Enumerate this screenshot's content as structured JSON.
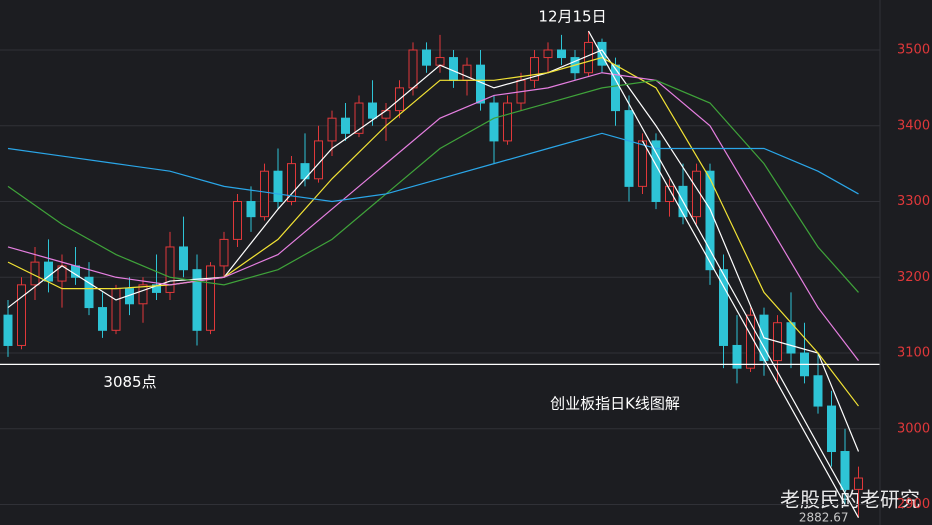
{
  "chart_data": {
    "type": "candlestick",
    "title": "创业板指日K线图解",
    "watermark": "老股民的老研究",
    "ylim": [
      2873,
      3566
    ],
    "yticks": [
      2900,
      3000,
      3100,
      3200,
      3300,
      3400,
      3500
    ],
    "grid": true,
    "up_color": "#e0383a",
    "down_color": "#2ec4d6",
    "tick_color": "#e0383a",
    "candles": [
      [
        3150,
        3170,
        3095,
        3110
      ],
      [
        3110,
        3200,
        3105,
        3190
      ],
      [
        3190,
        3240,
        3170,
        3220
      ],
      [
        3220,
        3250,
        3180,
        3195
      ],
      [
        3195,
        3230,
        3160,
        3215
      ],
      [
        3215,
        3240,
        3190,
        3200
      ],
      [
        3200,
        3220,
        3150,
        3160
      ],
      [
        3160,
        3180,
        3120,
        3130
      ],
      [
        3130,
        3190,
        3125,
        3185
      ],
      [
        3185,
        3200,
        3150,
        3165
      ],
      [
        3165,
        3200,
        3140,
        3190
      ],
      [
        3190,
        3230,
        3170,
        3180
      ],
      [
        3180,
        3260,
        3170,
        3240
      ],
      [
        3240,
        3280,
        3200,
        3210
      ],
      [
        3210,
        3230,
        3110,
        3130
      ],
      [
        3130,
        3220,
        3125,
        3215
      ],
      [
        3215,
        3260,
        3200,
        3250
      ],
      [
        3250,
        3310,
        3240,
        3300
      ],
      [
        3300,
        3320,
        3260,
        3280
      ],
      [
        3280,
        3350,
        3275,
        3340
      ],
      [
        3340,
        3370,
        3290,
        3300
      ],
      [
        3300,
        3360,
        3295,
        3350
      ],
      [
        3350,
        3390,
        3320,
        3330
      ],
      [
        3330,
        3400,
        3325,
        3380
      ],
      [
        3380,
        3420,
        3360,
        3410
      ],
      [
        3410,
        3430,
        3380,
        3390
      ],
      [
        3390,
        3440,
        3385,
        3430
      ],
      [
        3430,
        3460,
        3400,
        3410
      ],
      [
        3410,
        3430,
        3380,
        3420
      ],
      [
        3420,
        3460,
        3410,
        3450
      ],
      [
        3450,
        3510,
        3440,
        3500
      ],
      [
        3500,
        3510,
        3470,
        3480
      ],
      [
        3480,
        3520,
        3470,
        3490
      ],
      [
        3490,
        3500,
        3450,
        3460
      ],
      [
        3460,
        3490,
        3440,
        3480
      ],
      [
        3480,
        3500,
        3420,
        3430
      ],
      [
        3430,
        3440,
        3350,
        3380
      ],
      [
        3380,
        3440,
        3375,
        3430
      ],
      [
        3430,
        3470,
        3420,
        3460
      ],
      [
        3460,
        3500,
        3450,
        3490
      ],
      [
        3490,
        3510,
        3470,
        3500
      ],
      [
        3500,
        3520,
        3480,
        3490
      ],
      [
        3490,
        3500,
        3460,
        3470
      ],
      [
        3470,
        3525,
        3465,
        3510
      ],
      [
        3510,
        3515,
        3470,
        3480
      ],
      [
        3480,
        3490,
        3400,
        3420
      ],
      [
        3420,
        3440,
        3300,
        3320
      ],
      [
        3320,
        3390,
        3310,
        3380
      ],
      [
        3380,
        3390,
        3290,
        3300
      ],
      [
        3300,
        3330,
        3280,
        3320
      ],
      [
        3320,
        3350,
        3270,
        3280
      ],
      [
        3280,
        3350,
        3270,
        3340
      ],
      [
        3340,
        3350,
        3190,
        3210
      ],
      [
        3210,
        3230,
        3080,
        3110
      ],
      [
        3110,
        3150,
        3060,
        3080
      ],
      [
        3080,
        3160,
        3075,
        3150
      ],
      [
        3150,
        3160,
        3070,
        3090
      ],
      [
        3090,
        3150,
        3060,
        3140
      ],
      [
        3140,
        3180,
        3080,
        3100
      ],
      [
        3100,
        3140,
        3060,
        3070
      ],
      [
        3070,
        3100,
        3020,
        3030
      ],
      [
        3030,
        3050,
        2950,
        2970
      ],
      [
        2970,
        3000,
        2900,
        2920
      ],
      [
        2920,
        2950,
        2882.67,
        2935
      ]
    ],
    "ma": [
      {
        "color": "#ffffff",
        "x": [
          0,
          4,
          8,
          12,
          16,
          20,
          24,
          28,
          32,
          36,
          40,
          44,
          48,
          52,
          56,
          60,
          63
        ],
        "values": [
          3160,
          3215,
          3170,
          3195,
          3200,
          3290,
          3370,
          3420,
          3480,
          3450,
          3470,
          3500,
          3400,
          3290,
          3120,
          3100,
          2970
        ]
      },
      {
        "color": "#f2e335",
        "x": [
          0,
          4,
          8,
          12,
          16,
          20,
          24,
          28,
          32,
          36,
          40,
          44,
          48,
          52,
          56,
          60,
          63
        ],
        "values": [
          3220,
          3185,
          3185,
          3190,
          3200,
          3250,
          3330,
          3400,
          3460,
          3460,
          3470,
          3490,
          3450,
          3330,
          3180,
          3100,
          3030
        ]
      },
      {
        "color": "#e57fe0",
        "x": [
          0,
          4,
          8,
          12,
          16,
          20,
          24,
          28,
          32,
          36,
          40,
          44,
          48,
          52,
          56,
          60,
          63
        ],
        "values": [
          3240,
          3220,
          3200,
          3190,
          3200,
          3230,
          3290,
          3350,
          3410,
          3440,
          3450,
          3470,
          3460,
          3400,
          3280,
          3160,
          3090
        ]
      },
      {
        "color": "#3fa33a",
        "x": [
          0,
          4,
          8,
          12,
          16,
          20,
          24,
          28,
          32,
          36,
          40,
          44,
          48,
          52,
          56,
          60,
          63
        ],
        "values": [
          3320,
          3270,
          3230,
          3200,
          3190,
          3210,
          3250,
          3310,
          3370,
          3410,
          3430,
          3450,
          3460,
          3430,
          3350,
          3240,
          3180
        ]
      },
      {
        "color": "#2aa6e8",
        "x": [
          0,
          4,
          8,
          12,
          16,
          20,
          24,
          28,
          32,
          36,
          40,
          44,
          48,
          52,
          56,
          60,
          63
        ],
        "values": [
          3370,
          3360,
          3350,
          3340,
          3320,
          3310,
          3300,
          3310,
          3330,
          3350,
          3370,
          3390,
          3370,
          3370,
          3370,
          3340,
          3310
        ]
      }
    ],
    "trendlines": [
      {
        "from": [
          43,
          3525
        ],
        "to": [
          63,
          2882.67
        ]
      },
      {
        "from": [
          47,
          3380
        ],
        "to": [
          62,
          2900
        ]
      }
    ],
    "hline": {
      "value": 3085,
      "label": "3085点"
    },
    "peak_label": {
      "x": 43,
      "label": "12月15日"
    }
  }
}
